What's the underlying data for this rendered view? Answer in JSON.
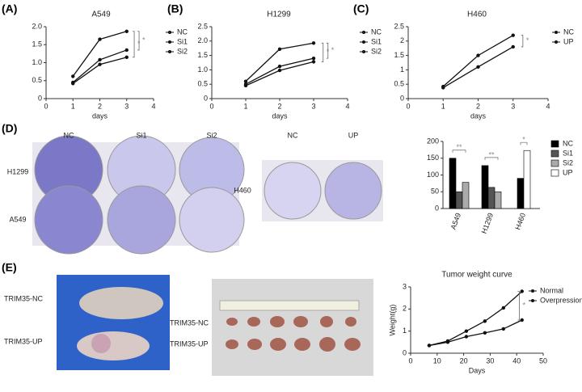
{
  "panels": [
    "(A)",
    "(B)",
    "(C)",
    "(D)",
    "(E)"
  ],
  "photos": {
    "colony1": {
      "columns": [
        "NC",
        "Si1",
        "Si2"
      ],
      "rows": [
        "H1299",
        "A549"
      ]
    },
    "colony2": {
      "columns": [
        "NC",
        "UP"
      ],
      "rows": [
        "H460"
      ]
    },
    "mouse": {
      "labels": [
        "TRIM35-NC",
        "TRIM35-UP"
      ]
    },
    "tumor": {
      "labels": [
        "TRIM35-NC",
        "TRIM35-UP"
      ]
    }
  },
  "chart_data": [
    {
      "type": "line",
      "title": "A549",
      "xlabel": "days",
      "x": [
        1,
        2,
        3
      ],
      "series": [
        {
          "name": "NC",
          "color": "#111111",
          "values": [
            0.62,
            1.65,
            1.87
          ]
        },
        {
          "name": "Si1",
          "color": "#111111",
          "values": [
            0.45,
            1.08,
            1.35
          ]
        },
        {
          "name": "Si2",
          "color": "#111111",
          "values": [
            0.42,
            0.95,
            1.15
          ]
        }
      ],
      "xlim": [
        0,
        4
      ],
      "xticks": [
        0,
        1,
        2,
        3,
        4
      ],
      "ylim": [
        0,
        2
      ],
      "yticks": [
        0,
        0.5,
        {
          "value": 1,
          "label": "1.0"
        },
        1.5,
        {
          "value": 2,
          "label": "2.0"
        }
      ],
      "annotations": [
        "*",
        "*"
      ]
    },
    {
      "type": "line",
      "title": "H1299",
      "xlabel": "days",
      "x": [
        1,
        2,
        3
      ],
      "series": [
        {
          "name": "NC",
          "color": "#111111",
          "values": [
            0.6,
            1.72,
            1.93
          ]
        },
        {
          "name": "Si1",
          "color": "#111111",
          "values": [
            0.5,
            1.12,
            1.4
          ]
        },
        {
          "name": "Si2",
          "color": "#111111",
          "values": [
            0.45,
            0.98,
            1.28
          ]
        }
      ],
      "xlim": [
        0,
        4
      ],
      "xticks": [
        0,
        1,
        2,
        3,
        4
      ],
      "ylim": [
        0,
        2.5
      ],
      "yticks": [
        0,
        0.5,
        {
          "value": 1,
          "label": "1.0"
        },
        1.5,
        {
          "value": 2,
          "label": "2.0"
        },
        2.5
      ],
      "annotations": [
        "*",
        "*"
      ]
    },
    {
      "type": "line",
      "title": "H460",
      "xlabel": "days",
      "x": [
        1,
        2,
        3
      ],
      "series": [
        {
          "name": "NC",
          "color": "#111111",
          "values": [
            0.38,
            1.1,
            1.8
          ]
        },
        {
          "name": "UP",
          "color": "#111111",
          "values": [
            0.42,
            1.5,
            2.2
          ]
        }
      ],
      "xlim": [
        0,
        4
      ],
      "xticks": [
        0,
        1,
        2,
        3,
        4
      ],
      "ylim": [
        0,
        2.5
      ],
      "yticks": [
        0,
        0.5,
        1,
        1.5,
        2,
        2.5
      ],
      "annotations": [
        "*"
      ]
    },
    {
      "type": "bar",
      "categories": [
        "A549",
        "H1299",
        "H460"
      ],
      "series": [
        {
          "name": "NC",
          "color": "#000000",
          "values": [
            150,
            128,
            90
          ]
        },
        {
          "name": "Si1",
          "color": "#555555",
          "values": [
            50,
            63,
            null
          ]
        },
        {
          "name": "Si2",
          "color": "#aaaaaa",
          "values": [
            78,
            50,
            null
          ]
        },
        {
          "name": "UP",
          "color": "#ffffff",
          "values": [
            null,
            null,
            173
          ]
        }
      ],
      "ylim": [
        0,
        200
      ],
      "yticks": [
        0,
        50,
        100,
        150,
        200
      ],
      "annotations": [
        "**",
        "**",
        "*"
      ]
    },
    {
      "type": "line",
      "title": "Tumor weight curve",
      "xlabel": "Days",
      "ylabel": "Weight(g)",
      "x": [
        7,
        14,
        21,
        28,
        35,
        42
      ],
      "series": [
        {
          "name": "Normal",
          "color": "#111111",
          "values": [
            0.35,
            0.5,
            0.75,
            0.92,
            1.1,
            1.5
          ]
        },
        {
          "name": "Overpression",
          "color": "#111111",
          "values": [
            0.35,
            0.55,
            1.0,
            1.45,
            2.05,
            2.8
          ]
        }
      ],
      "xlim": [
        0,
        50
      ],
      "xticks": [
        0,
        10,
        20,
        30,
        40,
        50
      ],
      "ylim": [
        0,
        3
      ],
      "yticks": [
        0,
        1,
        2,
        3
      ],
      "annotations": [
        "*"
      ]
    }
  ]
}
